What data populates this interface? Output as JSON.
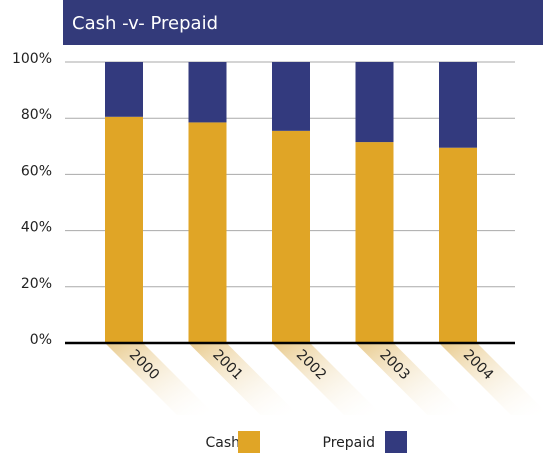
{
  "chart_data": {
    "type": "stacked_bar",
    "title": "Cash -v- Prepaid",
    "categories": [
      "2000",
      "2001",
      "2002",
      "2003",
      "2004"
    ],
    "series": [
      {
        "name": "Cash",
        "color": "#e0a526",
        "values": [
          80.5,
          78.5,
          75.5,
          71.5,
          69.5
        ]
      },
      {
        "name": "Prepaid",
        "color": "#333a7e",
        "values": [
          19.5,
          21.5,
          24.5,
          28.5,
          30.5
        ]
      }
    ],
    "ylim": [
      0,
      100
    ],
    "yticks": [
      {
        "value": 0,
        "label": "0%"
      },
      {
        "value": 20,
        "label": "20%"
      },
      {
        "value": 40,
        "label": "40%"
      },
      {
        "value": 60,
        "label": "60%"
      },
      {
        "value": 80,
        "label": "80%"
      },
      {
        "value": 100,
        "label": "100%"
      }
    ],
    "grid": true
  }
}
